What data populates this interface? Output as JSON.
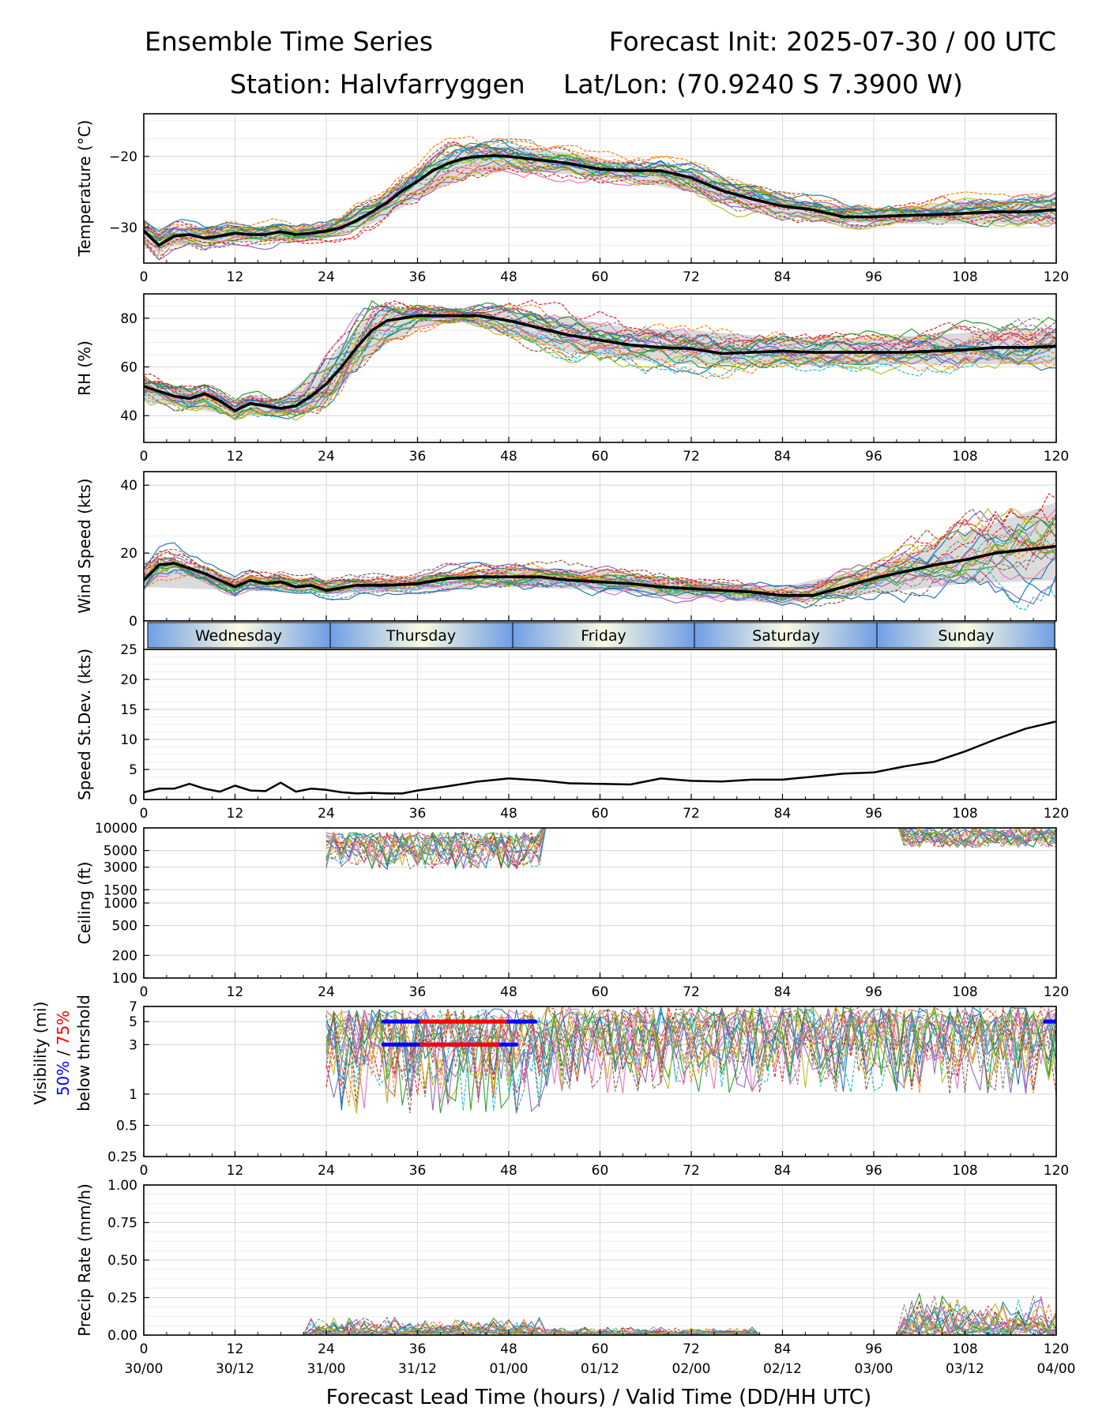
{
  "header": {
    "title_left": "Ensemble Time Series",
    "title_right": "Forecast Init: 2025-07-30 / 00 UTC",
    "station": "Station: Halvfarryggen",
    "latlon": "Lat/Lon: (70.9240 S 7.3900 W)"
  },
  "x_axis": {
    "label": "Forecast Lead Time (hours) / Valid Time (DD/HH UTC)",
    "lead_ticks": [
      "0",
      "12",
      "24",
      "36",
      "48",
      "60",
      "72",
      "84",
      "96",
      "108",
      "120"
    ],
    "valid_ticks": [
      "30/00",
      "30/12",
      "31/00",
      "31/12",
      "01/00",
      "01/12",
      "02/00",
      "02/12",
      "03/00",
      "03/12",
      "04/00"
    ]
  },
  "day_strip": [
    "Wednesday",
    "Thursday",
    "Friday",
    "Saturday",
    "Sunday"
  ],
  "visibility_label": {
    "line1": "Visibility (mi)",
    "p50": "50%",
    "sep": " / ",
    "p75": "75%",
    "line3": "below thrshold"
  },
  "colors": {
    "mean_line": "#000000",
    "spread_band": "#d9d9d9",
    "p50_marker": "#0000ff",
    "p75_marker": "#ff0000",
    "members": [
      "#1f77b4",
      "#ff7f0e",
      "#2ca02c",
      "#d62728",
      "#9467bd",
      "#8c564b",
      "#e377c2",
      "#7f7f7f",
      "#bcbd22",
      "#17becf"
    ]
  },
  "chart_data": [
    {
      "type": "line",
      "ylabel": "Temperature (°C)",
      "xlim": [
        0,
        120
      ],
      "ylim": [
        -35,
        -14
      ],
      "yticks": [
        -30,
        -20
      ],
      "ytick_labels": [
        "−30",
        "−20"
      ],
      "grid": true,
      "series": [
        {
          "role": "ensemble mean",
          "x": [
            0,
            2,
            4,
            6,
            8,
            10,
            12,
            14,
            16,
            18,
            20,
            22,
            24,
            26,
            28,
            30,
            32,
            34,
            36,
            38,
            40,
            42,
            44,
            46,
            48,
            52,
            56,
            60,
            64,
            68,
            72,
            76,
            80,
            84,
            88,
            92,
            96,
            100,
            104,
            108,
            112,
            116,
            120
          ],
          "y": [
            -30.5,
            -32.5,
            -31.2,
            -31.0,
            -31.5,
            -31.2,
            -30.8,
            -31.0,
            -31.0,
            -30.6,
            -31.0,
            -30.8,
            -30.5,
            -30.0,
            -29.0,
            -27.8,
            -26.5,
            -24.8,
            -23.5,
            -22.0,
            -21.0,
            -20.3,
            -20.0,
            -19.9,
            -20.0,
            -20.5,
            -21.0,
            -21.8,
            -22.0,
            -22.0,
            -23.0,
            -24.8,
            -26.0,
            -27.0,
            -27.5,
            -28.5,
            -28.5,
            -28.3,
            -28.2,
            -28.0,
            -27.8,
            -27.8,
            -27.5
          ]
        }
      ],
      "band": {
        "x": [
          0,
          12,
          24,
          30,
          36,
          42,
          48,
          56,
          64,
          72,
          80,
          88,
          96,
          108,
          120
        ],
        "lower": [
          -33,
          -32,
          -31.5,
          -29.5,
          -26,
          -23,
          -22,
          -22.5,
          -23.5,
          -25,
          -27.5,
          -29,
          -29.5,
          -29.5,
          -29.5
        ],
        "upper": [
          -30,
          -30,
          -29.5,
          -26.5,
          -22,
          -19,
          -18.5,
          -19.5,
          -21,
          -22,
          -24.5,
          -26.5,
          -27.5,
          -26.5,
          -25.5
        ]
      }
    },
    {
      "type": "line",
      "ylabel": "RH (%)",
      "xlim": [
        0,
        120
      ],
      "ylim": [
        29,
        90
      ],
      "yticks": [
        40,
        60,
        80
      ],
      "ytick_labels": [
        "40",
        "60",
        "80"
      ],
      "grid": true,
      "series": [
        {
          "role": "ensemble mean",
          "x": [
            0,
            2,
            4,
            6,
            8,
            10,
            12,
            14,
            16,
            18,
            20,
            22,
            24,
            26,
            28,
            30,
            32,
            34,
            36,
            40,
            44,
            48,
            52,
            56,
            60,
            64,
            68,
            72,
            76,
            80,
            84,
            88,
            92,
            96,
            100,
            104,
            108,
            112,
            116,
            120
          ],
          "y": [
            52,
            50,
            48,
            47,
            49,
            46,
            42,
            45,
            44,
            43,
            44,
            48,
            53,
            60,
            68,
            75,
            79,
            80,
            81,
            81,
            81,
            79,
            76,
            73,
            71,
            69,
            68,
            67.5,
            65.5,
            66,
            66.5,
            66,
            66,
            66,
            66,
            66.5,
            67,
            68,
            68,
            68.5
          ]
        }
      ],
      "band": {
        "x": [
          0,
          12,
          18,
          24,
          30,
          36,
          42,
          48,
          56,
          64,
          72,
          84,
          96,
          108,
          120
        ],
        "lower": [
          46,
          40,
          40,
          45,
          66,
          76,
          79,
          73,
          66,
          63,
          61,
          61,
          61,
          61,
          61
        ],
        "upper": [
          55,
          47,
          47,
          62,
          83,
          84,
          83,
          83,
          80,
          76,
          75,
          72,
          72,
          74,
          76
        ]
      }
    },
    {
      "type": "line",
      "ylabel": "Wind Speed (kts)",
      "xlim": [
        0,
        120
      ],
      "ylim": [
        0,
        44
      ],
      "yticks": [
        0,
        20,
        40
      ],
      "ytick_labels": [
        "0",
        "20",
        "40"
      ],
      "grid": true,
      "series": [
        {
          "role": "ensemble mean",
          "x": [
            0,
            2,
            4,
            6,
            8,
            10,
            12,
            14,
            16,
            18,
            20,
            22,
            24,
            28,
            32,
            36,
            40,
            44,
            48,
            52,
            56,
            60,
            64,
            68,
            72,
            76,
            80,
            84,
            88,
            92,
            96,
            100,
            104,
            108,
            112,
            116,
            120
          ],
          "y": [
            12,
            16.5,
            17,
            15.5,
            14,
            12,
            10,
            12,
            11,
            11.5,
            10,
            10.5,
            9,
            10.5,
            10.5,
            11,
            12.5,
            13,
            13,
            13,
            12,
            11.5,
            11,
            10,
            9.5,
            9,
            8.5,
            7.5,
            7.5,
            10,
            12.5,
            14.5,
            16.5,
            18,
            20,
            21,
            22
          ]
        }
      ],
      "band": {
        "x": [
          0,
          12,
          24,
          36,
          48,
          60,
          72,
          84,
          96,
          108,
          120
        ],
        "lower": [
          10,
          9,
          8,
          9,
          10,
          9,
          7,
          5,
          8,
          11,
          12
        ],
        "upper": [
          18,
          13,
          12,
          13,
          16,
          15,
          12,
          10,
          16,
          26,
          35
        ]
      }
    },
    {
      "type": "line",
      "ylabel": "Speed St.Dev. (kts)",
      "xlim": [
        0,
        120
      ],
      "ylim": [
        0,
        25
      ],
      "yticks": [
        0,
        5,
        10,
        15,
        20,
        25
      ],
      "ytick_labels": [
        "0",
        "5",
        "10",
        "15",
        "20",
        "25"
      ],
      "grid": true,
      "series": [
        {
          "role": "speed st.dev.",
          "x": [
            0,
            2,
            4,
            6,
            8,
            10,
            12,
            14,
            16,
            18,
            20,
            22,
            24,
            26,
            28,
            30,
            32,
            34,
            36,
            40,
            44,
            48,
            52,
            56,
            60,
            64,
            68,
            72,
            76,
            80,
            84,
            88,
            92,
            96,
            100,
            104,
            108,
            112,
            116,
            120
          ],
          "y": [
            1.2,
            1.8,
            1.8,
            2.6,
            1.8,
            1.3,
            2.3,
            1.5,
            1.4,
            2.8,
            1.3,
            1.8,
            1.6,
            1.2,
            1.0,
            1.1,
            1.0,
            1.0,
            1.5,
            2.2,
            3.0,
            3.5,
            3.2,
            2.7,
            2.6,
            2.5,
            3.5,
            3.1,
            3.0,
            3.3,
            3.3,
            3.8,
            4.3,
            4.5,
            5.5,
            6.3,
            8.0,
            10.0,
            11.8,
            13.0
          ]
        }
      ]
    },
    {
      "type": "line",
      "ylabel": "Ceiling (ft)",
      "xlim": [
        0,
        120
      ],
      "ylim": [
        100,
        10000
      ],
      "scale": "log",
      "yticks": [
        100,
        200,
        500,
        1000,
        1500,
        3000,
        5000,
        10000
      ],
      "ytick_labels": [
        "100",
        "200",
        "500",
        "1000",
        "1500",
        "3000",
        "5000",
        "10000"
      ],
      "grid": true,
      "series": []
    },
    {
      "type": "line",
      "ylabel": "Visibility (mi)",
      "xlim": [
        0,
        120
      ],
      "ylim": [
        0.25,
        7
      ],
      "scale": "log",
      "yticks": [
        0.25,
        0.5,
        1,
        3,
        5,
        7
      ],
      "ytick_labels": [
        "0.25",
        "0.5",
        "1",
        "3",
        "5",
        "7"
      ],
      "grid": true,
      "series": [
        {
          "name": "50%",
          "role": "50% below threshold",
          "segments": [
            [
              31.5,
              51.5
            ],
            [
              118.5,
              120
            ]
          ],
          "y": 5
        },
        {
          "name": "75%",
          "role": "75% below threshold",
          "segments": [
            [
              36.5,
              47.5
            ]
          ],
          "y": 5
        },
        {
          "name": "50%",
          "role": "50% below threshold",
          "segments": [
            [
              31.5,
              49.0
            ]
          ],
          "y": 3
        },
        {
          "name": "75%",
          "role": "75% below threshold",
          "segments": [
            [
              36.5,
              46.5
            ]
          ],
          "y": 3
        }
      ]
    },
    {
      "type": "line",
      "ylabel": "Precip Rate (mm/h)",
      "xlim": [
        0,
        120
      ],
      "ylim": [
        0,
        1
      ],
      "yticks": [
        0,
        0.25,
        0.5,
        0.75,
        1.0
      ],
      "ytick_labels": [
        "0.00",
        "0.25",
        "0.50",
        "0.75",
        "1.00"
      ],
      "grid": true,
      "series": []
    }
  ]
}
